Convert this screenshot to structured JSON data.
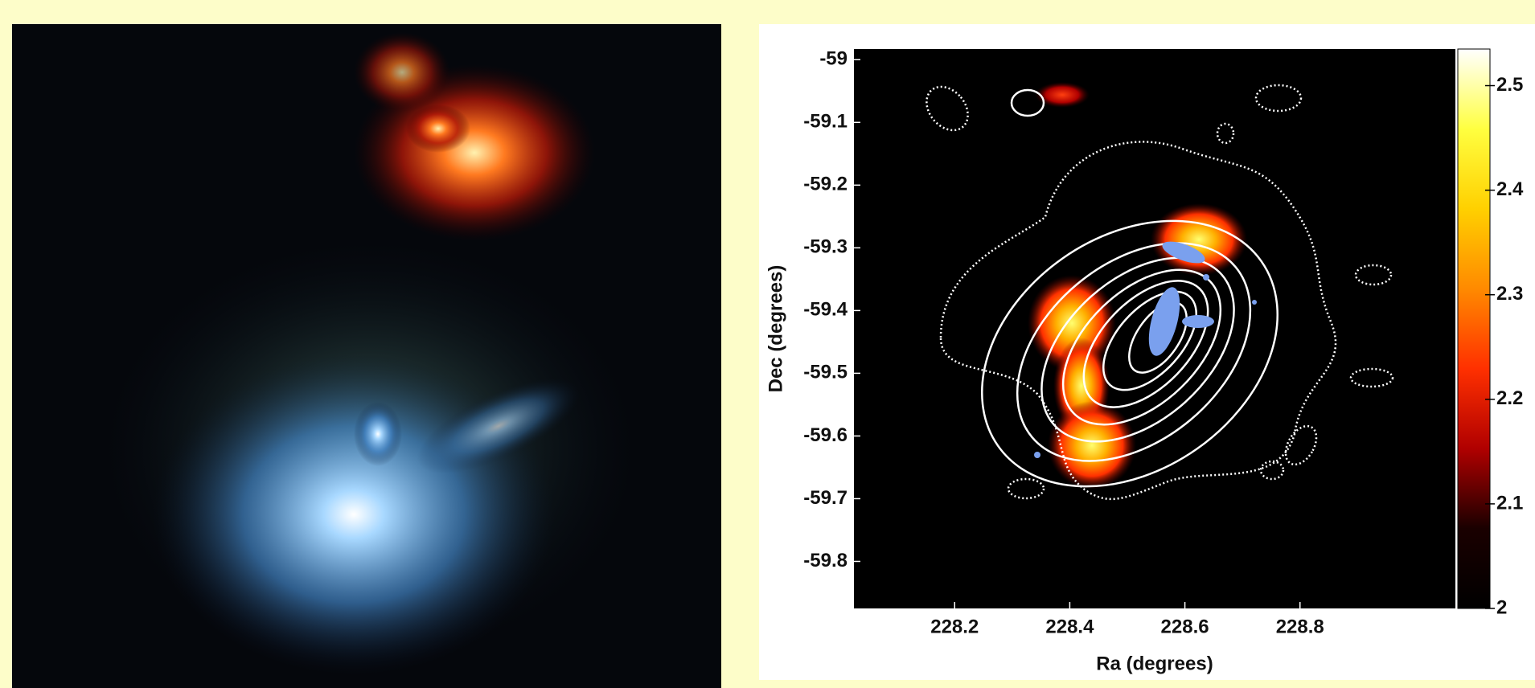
{
  "chart_data": {
    "type": "image-map",
    "xlabel": "Ra (degrees)",
    "ylabel": "Dec (degrees)",
    "xlim": [
      228.025,
      229.07
    ],
    "ylim": [
      -59.875,
      -58.983
    ],
    "xticks": [
      228.2,
      228.4,
      228.6,
      228.8
    ],
    "yticks": [
      -59,
      -59.1,
      -59.2,
      -59.3,
      -59.4,
      -59.5,
      -59.6,
      -59.7,
      -59.8
    ],
    "colorbar": {
      "lim": [
        2,
        2.535
      ],
      "ticks": [
        2,
        2.1,
        2.2,
        2.3,
        2.4,
        2.5
      ],
      "colors": [
        "#000000",
        "#1a0000",
        "#b00000",
        "#ff3000",
        "#ff8a00",
        "#ffd000",
        "#ffff40",
        "#ffffff"
      ]
    }
  }
}
